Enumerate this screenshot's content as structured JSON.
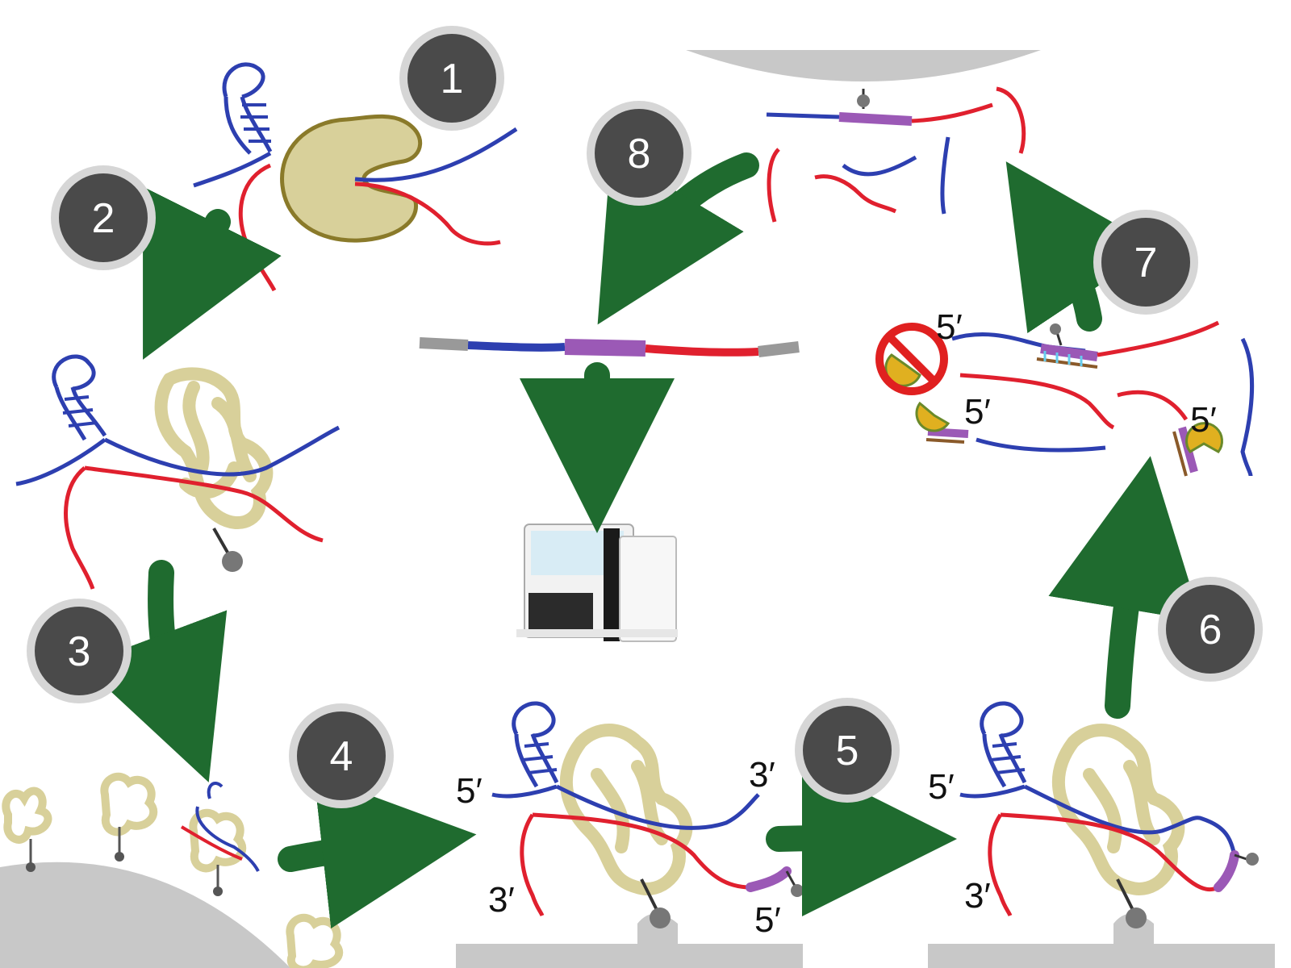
{
  "figure": {
    "title": "",
    "colors": {
      "arrow": "#1f6b2f",
      "strand_a": "#2d3fb0",
      "strand_b": "#e0202e",
      "adapter": "#9b59b6",
      "protein": "#d8d09a",
      "protein_edge": "#8a7a2a",
      "bead": "#c8c8c8",
      "badge": "#4a4a4a",
      "badge_ring": "#d6d6d6",
      "prohibit": "#e02020"
    },
    "steps": [
      {
        "number": "1"
      },
      {
        "number": "2"
      },
      {
        "number": "3"
      },
      {
        "number": "4"
      },
      {
        "number": "5"
      },
      {
        "number": "6"
      },
      {
        "number": "7"
      },
      {
        "number": "8"
      }
    ],
    "end_labels": {
      "p4_5": "5′",
      "p4_3": "3′",
      "p4_3b": "3′",
      "p4_5b": "5′",
      "p5_5": "5′",
      "p5_3": "3′",
      "p7_5a": "5′",
      "p7_5b": "5′",
      "p7_5c": "5′"
    },
    "icons": [
      "sequencer-icon",
      "prohibition-icon",
      "exonuclease-icon"
    ]
  }
}
